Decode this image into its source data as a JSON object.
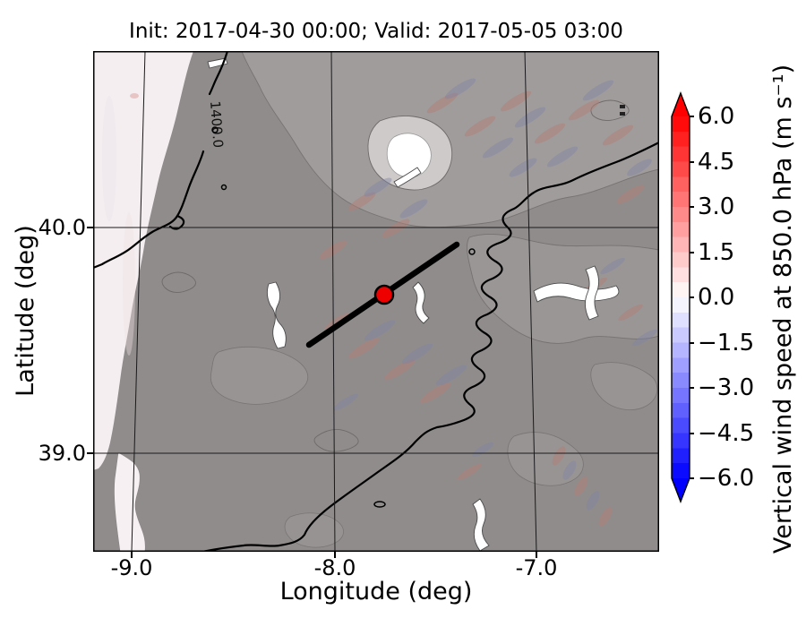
{
  "figure": {
    "title": "Init: 2017-04-30 00:00; Valid: 2017-05-05 03:00",
    "xlabel": "Longitude (deg)",
    "ylabel": "Latitude (deg)",
    "x_ticks": [
      "-9.0",
      "-8.0",
      "-7.0"
    ],
    "y_ticks": [
      "40.0",
      "39.0"
    ],
    "contour_label": "1400.0"
  },
  "colorbar": {
    "label": "Vertical wind speed at 850.0 hPa (m s⁻¹)",
    "tick_labels": [
      "6.0",
      "4.5",
      "3.0",
      "1.5",
      "0.0",
      "−1.5",
      "−3.0",
      "−4.5",
      "−6.0"
    ],
    "tick_values": [
      6.0,
      4.5,
      3.0,
      1.5,
      0.0,
      -1.5,
      -3.0,
      -4.5,
      -6.0
    ],
    "vmin": -6.0,
    "vmax": 6.0,
    "band_step": 0.5,
    "extend": "both",
    "color_positive_max": "#ff0000",
    "color_zero": "#ffffff",
    "color_negative_max": "#0000ff"
  },
  "map_colors": {
    "land_gray": "#908c8c",
    "high_terrain_white": "#ffffff",
    "ocean_pale": "#f4eef0",
    "marker_red": "#ee0000",
    "contour_black": "#000000"
  },
  "chart_data": {
    "type": "heatmap",
    "title": "Init: 2017-04-30 00:00; Valid: 2017-05-05 03:00",
    "xlabel": "Longitude (deg)",
    "ylabel": "Latitude (deg)",
    "x_tick_values": [
      -9.0,
      -8.0,
      -7.0
    ],
    "y_tick_values": [
      40.0,
      39.0
    ],
    "map_extent": {
      "lon_min": -9.2,
      "lon_max": -6.35,
      "lat_min": 38.6,
      "lat_max": 40.8
    },
    "field": "Vertical wind speed at 850.0 hPa",
    "units": "m s⁻¹",
    "value_range": [
      -6.0,
      6.0
    ],
    "colorbar_tick_values": [
      6.0,
      4.5,
      3.0,
      1.5,
      0.0,
      -1.5,
      -3.0,
      -4.5,
      -6.0
    ],
    "colormap": "blue-white-red diverging, 0.5 m/s steps, extended arrows both ends",
    "grid": true,
    "overlays": {
      "geopotential_height_contour_m": 1400.0,
      "cross_section_line": {
        "from_lonlat": [
          -8.12,
          39.48
        ],
        "to_lonlat": [
          -7.37,
          39.92
        ],
        "color": "#000000"
      },
      "point_marker": {
        "lonlat": [
          -7.74,
          39.71
        ],
        "color": "#ee0000"
      }
    }
  }
}
